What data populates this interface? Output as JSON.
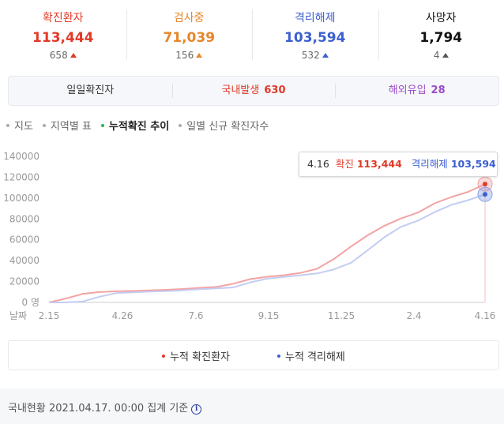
{
  "summary": [
    {
      "label": "확진환자",
      "value": "113,444",
      "change": "658",
      "color": "#e03a28"
    },
    {
      "label": "검사중",
      "value": "71,039",
      "change": "156",
      "color": "#e6862a"
    },
    {
      "label": "격리해제",
      "value": "103,594",
      "change": "532",
      "color": "#3c5fd0"
    },
    {
      "label": "사망자",
      "value": "1,794",
      "change": "4",
      "color": "#111111"
    }
  ],
  "daily": {
    "label": "일일확진자",
    "domestic_label": "국내발생",
    "domestic_value": "630",
    "overseas_label": "해외유입",
    "overseas_value": "28"
  },
  "tabs": [
    {
      "label": "지도",
      "active": false
    },
    {
      "label": "지역별 표",
      "active": false
    },
    {
      "label": "누적확진 추이",
      "active": true
    },
    {
      "label": "일별 신규 확진자수",
      "active": false
    }
  ],
  "tooltip": {
    "date": "4.16",
    "confirmed_label": "확진",
    "confirmed_value": "113,444",
    "released_label": "격리해제",
    "released_value": "103,594"
  },
  "legend": [
    {
      "label": "누적 확진환자",
      "color": "#f3a3a3"
    },
    {
      "label": "누적 격리해제",
      "color": "#3c5fd0"
    }
  ],
  "footer": {
    "text": "국내현황 2021.04.17. 00:00 집계 기준",
    "icon": "info-icon"
  },
  "chart_data": {
    "type": "line",
    "x_axis_label": "날짜",
    "x_ticks": [
      "2.15",
      "4.26",
      "7.6",
      "9.15",
      "11.25",
      "2.4",
      "4.16"
    ],
    "y_ticks": [
      "0 명",
      "20000",
      "40000",
      "60000",
      "80000",
      "100000",
      "120000",
      "140000"
    ],
    "ylim": [
      0,
      140000
    ],
    "x": [
      "2.15",
      "3.1",
      "3.15",
      "4.1",
      "4.26",
      "5.15",
      "6.1",
      "6.15",
      "7.6",
      "7.25",
      "8.10",
      "8.25",
      "9.15",
      "10.5",
      "10.25",
      "11.10",
      "11.25",
      "12.10",
      "12.25",
      "1.5",
      "1.20",
      "2.4",
      "2.20",
      "3.10",
      "3.25",
      "4.5",
      "4.16"
    ],
    "series": [
      {
        "name": "누적 확진환자",
        "color": "#f3a3a3",
        "values": [
          28,
          3700,
          8100,
          9900,
          10700,
          11000,
          11500,
          12100,
          12900,
          13900,
          14800,
          17900,
          22300,
          24600,
          26000,
          28300,
          32300,
          41700,
          53500,
          64300,
          73500,
          80500,
          86100,
          95000,
          101000,
          106000,
          113444
        ]
      },
      {
        "name": "누적 격리해제",
        "color": "#c4cdf2",
        "values": [
          16,
          30,
          800,
          5400,
          8900,
          9700,
          10400,
          10800,
          11600,
          12600,
          13500,
          14400,
          19200,
          22700,
          24400,
          26000,
          27800,
          31700,
          37900,
          50000,
          62500,
          72500,
          78400,
          86600,
          93500,
          98000,
          103594
        ]
      }
    ],
    "highlight": {
      "x": "4.16"
    },
    "grid": false
  }
}
